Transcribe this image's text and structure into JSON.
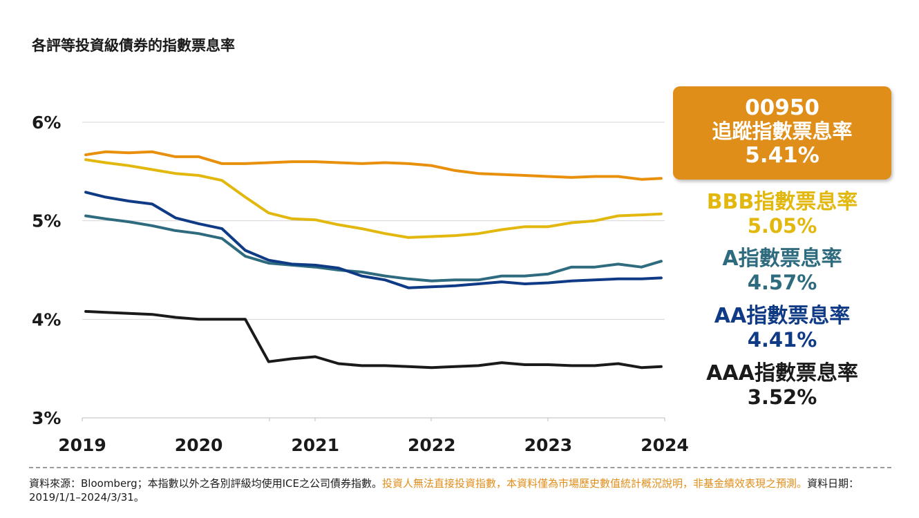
{
  "title": "各評等投資級債券的指數票息率",
  "highlight": {
    "code": "00950",
    "name": "追蹤指數票息率",
    "value": "5.41%",
    "color": "#e08e1a"
  },
  "legend": [
    {
      "name": "BBB指數票息率",
      "value": "5.05%",
      "color": "#e2b80f"
    },
    {
      "name": "A指數票息率",
      "value": "4.57%",
      "color": "#2e6b7f"
    },
    {
      "name": "AA指數票息率",
      "value": "4.41%",
      "color": "#0f3a85"
    },
    {
      "name": "AAA指數票息率",
      "value": "3.52%",
      "color": "#1a1a1a"
    }
  ],
  "footer": {
    "source": "資料來源：Bloomberg；本指數以外之各別評級均使用ICE之公司債券指數。",
    "warning": "投資人無法直接投資指數，本資料僅為市場歷史數值統計概況說明，非基金績效表現之預測。",
    "date": "資料日期：2019/1/1–2024/3/31。"
  },
  "chart_data": {
    "type": "line",
    "title": "各評等投資級債券的指數票息率",
    "xlabel": "",
    "ylabel": "",
    "ylim": [
      3,
      6
    ],
    "xlim": [
      2019.0,
      2024.0
    ],
    "yticks": [
      "3%",
      "4%",
      "5%",
      "6%"
    ],
    "ytick_values": [
      3,
      4,
      5,
      6
    ],
    "xticks": [
      "2019",
      "2020",
      "2021",
      "2022",
      "2023",
      "2024"
    ],
    "xtick_values": [
      2019,
      2020,
      2021,
      2022,
      2023,
      2024
    ],
    "grid": true,
    "x": [
      2019.03,
      2019.2,
      2019.4,
      2019.6,
      2019.8,
      2020.0,
      2020.2,
      2020.4,
      2020.6,
      2020.8,
      2021.0,
      2021.2,
      2021.4,
      2021.6,
      2021.8,
      2022.0,
      2022.2,
      2022.4,
      2022.6,
      2022.8,
      2023.0,
      2023.2,
      2023.4,
      2023.6,
      2023.8,
      2023.97
    ],
    "series": [
      {
        "name": "00950",
        "color": "#e8900c",
        "values": [
          5.67,
          5.7,
          5.69,
          5.7,
          5.65,
          5.65,
          5.58,
          5.58,
          5.59,
          5.6,
          5.6,
          5.59,
          5.58,
          5.59,
          5.58,
          5.56,
          5.51,
          5.48,
          5.47,
          5.46,
          5.45,
          5.44,
          5.45,
          5.45,
          5.42,
          5.43
        ]
      },
      {
        "name": "BBB",
        "color": "#e2b80f",
        "values": [
          5.62,
          5.59,
          5.56,
          5.52,
          5.48,
          5.46,
          5.41,
          5.24,
          5.08,
          5.02,
          5.01,
          4.96,
          4.92,
          4.87,
          4.83,
          4.84,
          4.85,
          4.87,
          4.91,
          4.94,
          4.94,
          4.98,
          5.0,
          5.05,
          5.06,
          5.07
        ]
      },
      {
        "name": "A",
        "color": "#2e6b7f",
        "values": [
          5.05,
          5.02,
          4.99,
          4.95,
          4.9,
          4.87,
          4.82,
          4.64,
          4.57,
          4.55,
          4.53,
          4.5,
          4.48,
          4.44,
          4.41,
          4.39,
          4.4,
          4.4,
          4.44,
          4.44,
          4.46,
          4.53,
          4.53,
          4.56,
          4.53,
          4.59
        ]
      },
      {
        "name": "AA",
        "color": "#0f3a85",
        "values": [
          5.29,
          5.24,
          5.2,
          5.17,
          5.03,
          4.97,
          4.92,
          4.7,
          4.6,
          4.56,
          4.55,
          4.52,
          4.44,
          4.4,
          4.32,
          4.33,
          4.34,
          4.36,
          4.38,
          4.36,
          4.37,
          4.39,
          4.4,
          4.41,
          4.41,
          4.42
        ]
      },
      {
        "name": "AAA",
        "color": "#1a1a1a",
        "values": [
          4.08,
          4.07,
          4.06,
          4.05,
          4.02,
          4.0,
          4.0,
          4.0,
          3.57,
          3.6,
          3.62,
          3.55,
          3.53,
          3.53,
          3.52,
          3.51,
          3.52,
          3.53,
          3.56,
          3.54,
          3.54,
          3.53,
          3.53,
          3.55,
          3.51,
          3.52
        ]
      }
    ]
  }
}
